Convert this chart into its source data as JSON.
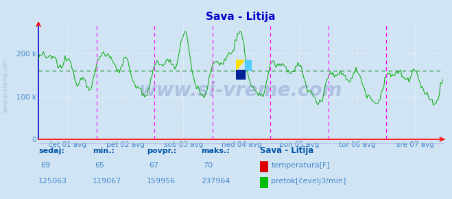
{
  "title": "Sava - Litija",
  "bg_color": "#d0e4f4",
  "plot_bg_color": "#d0e4f4",
  "line_color": "#00aa00",
  "grid_color": "#ffffff",
  "left_spine_color": "#0000cc",
  "bottom_spine_color": "#ff0000",
  "magenta_line_color": "#ff00ff",
  "dashed_green_color": "#008800",
  "x_labels": [
    "čet 01 avg",
    "pet 02 avg",
    "sob 03 avg",
    "ned 04 avg",
    "pon 05 avg",
    "tor 06 avg",
    "sre 07 avg"
  ],
  "y_ticks": [
    0,
    100000,
    200000
  ],
  "y_tick_labels": [
    "0",
    "100 k",
    "200 k"
  ],
  "ymin": 0,
  "ymax": 270000,
  "avg_line_y": 159956,
  "title_color": "#0000cc",
  "label_color": "#4488cc",
  "footer_text_color": "#4488cc",
  "footer_bold_color": "#0055aa",
  "watermark": "www.si-vreme.com",
  "watermark_color": "#aabbdd",
  "sedaj": 125063,
  "min_val": 119067,
  "povpr": 159956,
  "maks": 237964,
  "temp_sedaj": 69,
  "temp_min": 65,
  "temp_povpr": 67,
  "temp_maks": 70,
  "n_days": 7,
  "pts_per_day": 48
}
